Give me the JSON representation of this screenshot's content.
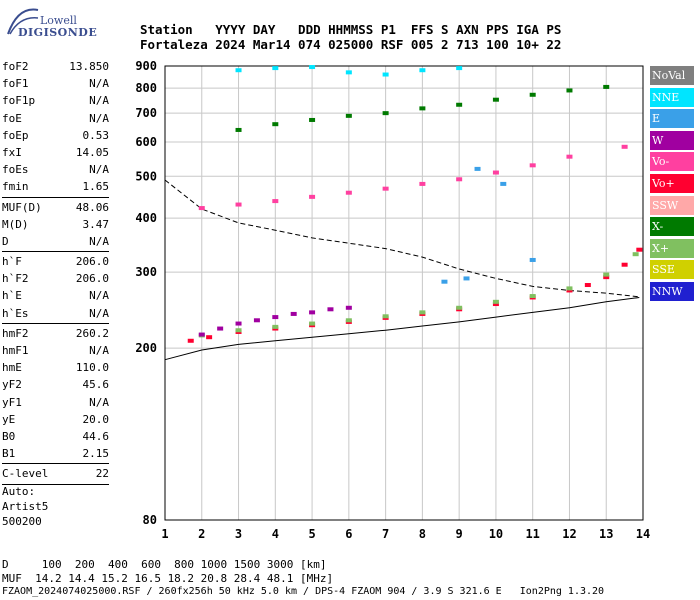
{
  "logo": {
    "line1": "Lowell",
    "line2": "DIGISONDE"
  },
  "header": {
    "row1": "Station   YYYY DAY   DDD HHMMSS P1  FFS S AXN PPS IGA PS",
    "row2": "Fortaleza 2024 Mar14 074 025000 RSF 005 2 713 100 10+ 22"
  },
  "params": [
    [
      {
        "k": "foF2",
        "v": "13.850"
      },
      {
        "k": "foF1",
        "v": "N/A"
      },
      {
        "k": "foF1p",
        "v": "N/A"
      },
      {
        "k": "foE",
        "v": "N/A"
      },
      {
        "k": "foEp",
        "v": "0.53"
      },
      {
        "k": "fxI",
        "v": "14.05"
      },
      {
        "k": "foEs",
        "v": "N/A"
      },
      {
        "k": "fmin",
        "v": "1.65"
      }
    ],
    [
      {
        "k": "MUF(D)",
        "v": "48.06"
      },
      {
        "k": "M(D)",
        "v": "3.47"
      },
      {
        "k": "D",
        "v": "N/A"
      }
    ],
    [
      {
        "k": "h`F",
        "v": "206.0"
      },
      {
        "k": "h`F2",
        "v": "206.0"
      },
      {
        "k": "h`E",
        "v": "N/A"
      },
      {
        "k": "h`Es",
        "v": "N/A"
      }
    ],
    [
      {
        "k": "hmF2",
        "v": "260.2"
      },
      {
        "k": "hmF1",
        "v": "N/A"
      },
      {
        "k": "hmE",
        "v": "110.0"
      },
      {
        "k": "yF2",
        "v": "45.6"
      },
      {
        "k": "yF1",
        "v": "N/A"
      },
      {
        "k": "yE",
        "v": "20.0"
      },
      {
        "k": "B0",
        "v": "44.6"
      },
      {
        "k": "B1",
        "v": "2.15"
      }
    ],
    [
      {
        "k": "C-level",
        "v": "22"
      }
    ]
  ],
  "auto": {
    "l1": "Auto:",
    "l2": "Artist5",
    "l3": "500200"
  },
  "legend": [
    {
      "label": "NoVal",
      "color": "#7f7f7f"
    },
    {
      "label": "NNE",
      "color": "#00e5ff"
    },
    {
      "label": "E",
      "color": "#3aa0e8"
    },
    {
      "label": "W",
      "color": "#a000a0"
    },
    {
      "label": "Vo-",
      "color": "#ff40a0"
    },
    {
      "label": "Vo+",
      "color": "#ff0030"
    },
    {
      "label": "SSW",
      "color": "#ffa8a8"
    },
    {
      "label": "X-",
      "color": "#007a00"
    },
    {
      "label": "X+",
      "color": "#80c060"
    },
    {
      "label": "SSE",
      "color": "#d0d000"
    },
    {
      "label": "NNW",
      "color": "#2020d0"
    }
  ],
  "bottom": {
    "d_row": "D     100  200  400  600  800 1000 1500 3000 [km]",
    "muf_row": "MUF  14.2 14.4 15.2 16.5 18.2 20.8 28.4 48.1 [MHz]"
  },
  "footer": "FZAOM_2024074025000.RSF / 260fx256h 50 kHz 5.0 km / DPS-4 FZAOM 904 / 3.9 S 321.6 E   Ion2Png 1.3.20",
  "chart_data": {
    "type": "scatter",
    "xlim": [
      1,
      14
    ],
    "ylim": [
      80,
      900
    ],
    "y_scale": "log",
    "xticks": [
      1,
      2,
      3,
      4,
      5,
      6,
      7,
      8,
      9,
      10,
      11,
      12,
      13,
      14
    ],
    "yticks": [
      80,
      200,
      300,
      400,
      500,
      600,
      700,
      800,
      900
    ],
    "grid": true,
    "series": [
      {
        "name": "Vo+",
        "color": "#ff0030",
        "x": [
          1.7,
          2.2,
          3,
          4,
          5,
          6,
          7,
          8,
          9,
          10,
          11,
          12,
          12.5,
          13,
          13.5,
          13.9
        ],
        "y": [
          208,
          212,
          218,
          222,
          226,
          230,
          235,
          240,
          246,
          253,
          262,
          272,
          280,
          292,
          312,
          338
        ]
      },
      {
        "name": "X+",
        "color": "#80c060",
        "x": [
          2,
          3,
          4,
          5,
          6,
          7,
          8,
          9,
          10,
          11,
          12,
          13,
          13.8
        ],
        "y": [
          214,
          220,
          224,
          228,
          232,
          237,
          242,
          248,
          256,
          264,
          275,
          296,
          330
        ]
      },
      {
        "name": "W",
        "color": "#a000a0",
        "x": [
          2,
          2.5,
          3,
          3.5,
          4,
          4.5,
          5,
          5.5,
          6
        ],
        "y": [
          215,
          222,
          228,
          232,
          236,
          240,
          242,
          246,
          248
        ]
      },
      {
        "name": "Vo-",
        "color": "#ff40a0",
        "x": [
          2,
          3,
          4,
          5,
          6,
          7,
          8,
          9,
          10,
          11,
          12,
          13.5
        ],
        "y": [
          422,
          430,
          438,
          448,
          458,
          468,
          480,
          492,
          510,
          530,
          555,
          585
        ]
      },
      {
        "name": "X-",
        "color": "#007a00",
        "x": [
          3,
          4,
          5,
          6,
          7,
          8,
          9,
          10,
          11,
          12,
          13
        ],
        "y": [
          640,
          660,
          675,
          690,
          700,
          718,
          732,
          752,
          772,
          790,
          805
        ]
      },
      {
        "name": "NNE",
        "color": "#00e5ff",
        "x": [
          3,
          4,
          5,
          6,
          7,
          8,
          9
        ],
        "y": [
          880,
          890,
          895,
          870,
          860,
          880,
          890
        ]
      },
      {
        "name": "E",
        "color": "#3aa0e8",
        "x": [
          8.6,
          9.2,
          9.5,
          10.2,
          11
        ],
        "y": [
          285,
          290,
          520,
          480,
          320
        ]
      }
    ],
    "profile_dashed": {
      "x": [
        1,
        2,
        3,
        4,
        5,
        6,
        7,
        8,
        9,
        10,
        11,
        12,
        13,
        13.9
      ],
      "y": [
        490,
        420,
        390,
        375,
        360,
        350,
        340,
        325,
        305,
        290,
        278,
        272,
        268,
        263
      ]
    },
    "profile_solid": {
      "x": [
        1,
        2,
        3,
        4,
        5,
        6,
        7,
        8,
        9,
        10,
        11,
        12,
        13,
        13.9
      ],
      "y": [
        188,
        198,
        204,
        208,
        212,
        216,
        220,
        225,
        230,
        236,
        242,
        248,
        256,
        262
      ]
    }
  }
}
